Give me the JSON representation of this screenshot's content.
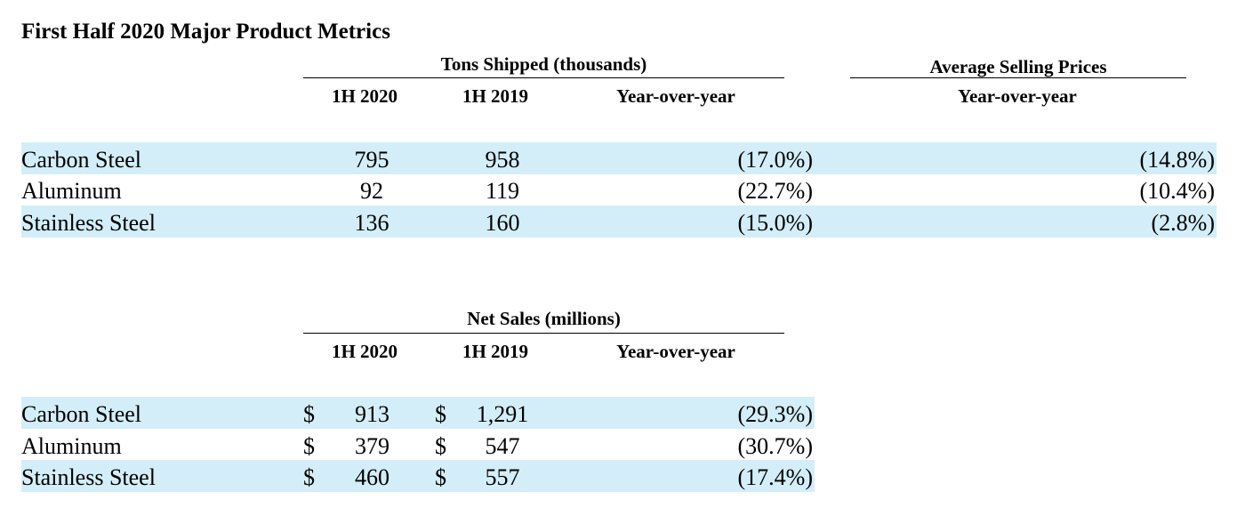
{
  "title": "First Half 2020 Major Product Metrics",
  "tons": {
    "group_label": "Tons Shipped (thousands)",
    "col_1h2020": "1H 2020",
    "col_1h2019": "1H 2019",
    "col_yoy": "Year-over-year",
    "rows": [
      {
        "product": "Carbon Steel",
        "h2020": "795",
        "h2019": "958",
        "yoy": "(17.0%)"
      },
      {
        "product": "Aluminum",
        "h2020": "92",
        "h2019": "119",
        "yoy": "(22.7%)"
      },
      {
        "product": "Stainless Steel",
        "h2020": "136",
        "h2019": "160",
        "yoy": "(15.0%)"
      }
    ]
  },
  "asp": {
    "group_label": "Average Selling Prices",
    "col_yoy": "Year-over-year",
    "rows": [
      {
        "yoy": "(14.8%)"
      },
      {
        "yoy": "(10.4%)"
      },
      {
        "yoy": "(2.8%)"
      }
    ]
  },
  "sales": {
    "group_label": "Net Sales (millions)",
    "col_1h2020": "1H 2020",
    "col_1h2019": "1H 2019",
    "col_yoy": "Year-over-year",
    "currency": "$",
    "rows": [
      {
        "product": "Carbon Steel",
        "h2020": "913",
        "h2019": "1,291",
        "yoy": "(29.3%)"
      },
      {
        "product": "Aluminum",
        "h2020": "379",
        "h2019": "547",
        "yoy": "(30.7%)"
      },
      {
        "product": "Stainless Steel",
        "h2020": "460",
        "h2019": "557",
        "yoy": "(17.4%)"
      }
    ]
  },
  "colors": {
    "band": "#d3eef9"
  }
}
